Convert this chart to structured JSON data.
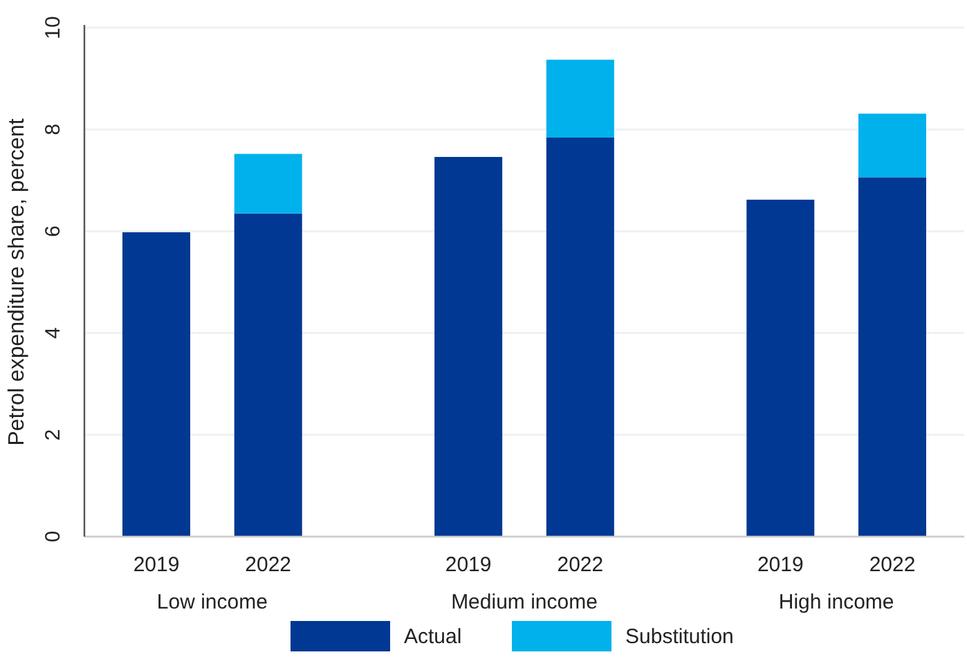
{
  "chart_data": {
    "type": "bar",
    "stacked": true,
    "ylabel": "Petrol expenditure share, percent",
    "categories": [
      "2019",
      "2022",
      "2019",
      "2022",
      "2019",
      "2022"
    ],
    "annotations": [
      "Low income",
      "Medium income",
      "High income"
    ],
    "series": [
      {
        "name": "Actual",
        "color": "#003893",
        "values": [
          5.98,
          6.35,
          7.46,
          7.84,
          6.62,
          7.06
        ]
      },
      {
        "name": "Substitution",
        "color": "#00b1eb",
        "values": [
          0,
          1.17,
          0,
          1.53,
          0,
          1.25
        ]
      }
    ],
    "ylim": [
      0,
      10
    ],
    "yticks": [
      0,
      2,
      4,
      6,
      8,
      10
    ],
    "grid": "y",
    "legend": "bottom"
  }
}
